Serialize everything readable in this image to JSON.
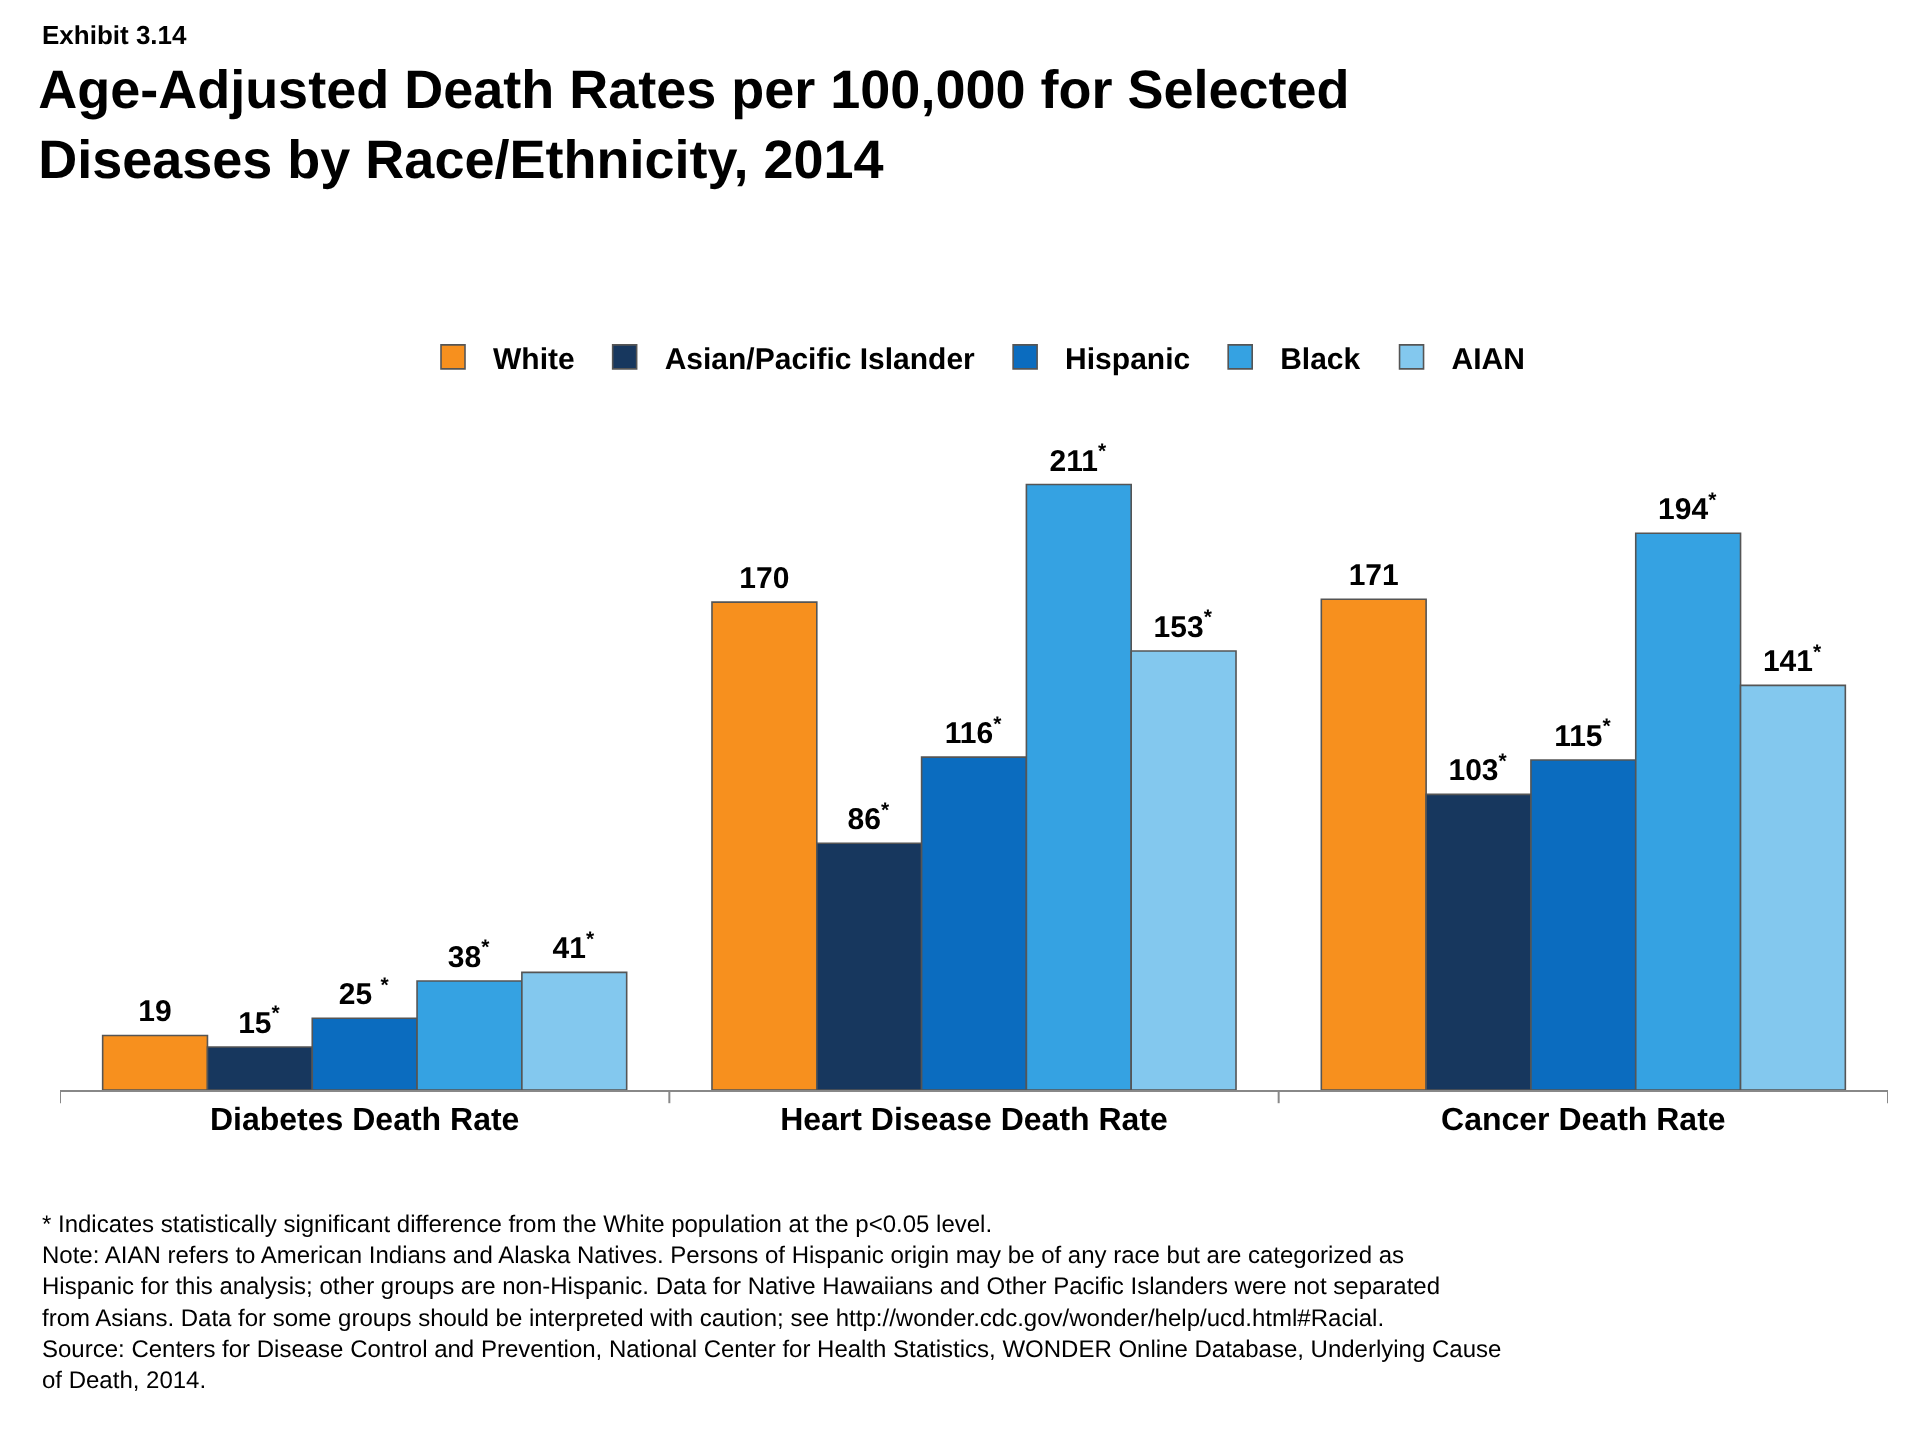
{
  "chart_data": {
    "type": "bar",
    "title": "Age-Adjusted Death Rates per 100,000 for Selected Diseases by Race/Ethnicity, 2014",
    "categories": [
      "Diabetes Death Rate",
      "Heart Disease Death Rate",
      "Cancer Death Rate"
    ],
    "series": [
      {
        "name": "White",
        "color": "#f7901e",
        "values": [
          19,
          170,
          171
        ],
        "value_labels": [
          "19",
          "170",
          "171"
        ]
      },
      {
        "name": "Asian/Pacific Islander",
        "color": "#17375e",
        "values": [
          15,
          86,
          103
        ],
        "value_labels": [
          "15$^{*}$",
          "86$^{*}$",
          "103$^{*}$"
        ]
      },
      {
        "name": "Hispanic",
        "color": "#0b6cbf",
        "values": [
          25,
          116,
          115
        ],
        "value_labels": [
          "25 $^{*}$",
          "116$^{*}$",
          "115$^{*}$"
        ]
      },
      {
        "name": "Black",
        "color": "#35a2e2",
        "values": [
          38,
          211,
          194
        ],
        "value_labels": [
          "38$^{*}$",
          "211$^{*}$",
          "194$^{*}$"
        ]
      },
      {
        "name": "AIAN",
        "color": "#83c8ee",
        "values": [
          41,
          153,
          141
        ],
        "value_labels": [
          "41$^{*}$",
          "153$^{*}$",
          "141$^{*}$"
        ]
      }
    ],
    "legend": "top",
    "annotations": [
      "Exhibit 3.14",
      "* Indicates statistically significant difference from the White population at the p<0.05 level.",
      "Note: AIAN refers to American Indians and Alaska Natives. Persons of Hispanic origin may be of any race but are categorized as Hispanic for this analysis; other groups are non-Hispanic. Data for Native Hawaiians and Other Pacific Islanders were not separated from Asians. Data for some groups should be interpreted with caution; see http://wonder.cdc.gov/wonder/help/ucd.html#Racial.",
      "Source: Centers for Disease Control and Prevention, National Center for Health Statistics, WONDER Online Database, Underlying Cause of Death, 2014."
    ]
  }
}
